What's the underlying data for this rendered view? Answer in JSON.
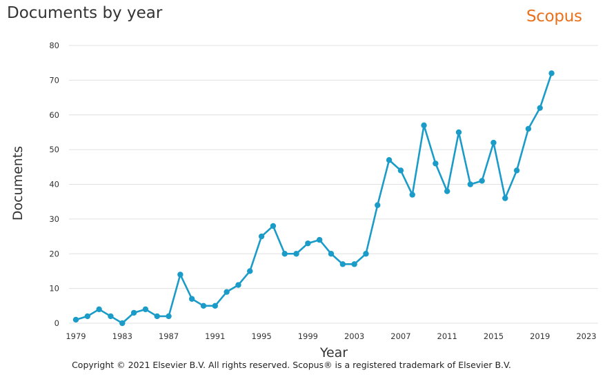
{
  "header": {
    "title": "Documents by year",
    "brand": "Scopus"
  },
  "footer": {
    "copyright": "Copyright © 2021 Elsevier B.V. All rights reserved. Scopus® is a registered trademark of Elsevier B.V."
  },
  "colors": {
    "series": "#1a9bc8",
    "brand": "#e9711c",
    "grid": "#e0e0e0"
  },
  "chart_data": {
    "type": "line",
    "title": "Documents by year",
    "xlabel": "Year",
    "ylabel": "Documents",
    "xlim": [
      1979,
      2023
    ],
    "ylim": [
      0,
      80
    ],
    "x_ticks": [
      "1979",
      "1983",
      "1987",
      "1991",
      "1995",
      "1999",
      "2003",
      "2007",
      "2011",
      "2015",
      "2019",
      "2023"
    ],
    "y_ticks": [
      "0",
      "10",
      "20",
      "30",
      "40",
      "50",
      "60",
      "70",
      "80"
    ],
    "grid": "horizontal",
    "legend": "none",
    "series": [
      {
        "x": [
          1979,
          1980,
          1981,
          1982,
          1983,
          1984,
          1985,
          1986,
          1987,
          1988,
          1989,
          1990,
          1991,
          1992,
          1993,
          1994,
          1995,
          1996,
          1997,
          1998,
          1999,
          2000,
          2001,
          2002,
          2003,
          2004,
          2005,
          2006,
          2007,
          2008,
          2009,
          2010,
          2011,
          2012,
          2013,
          2014,
          2015,
          2016,
          2017,
          2018,
          2019,
          2020
        ],
        "values": [
          1,
          2,
          4,
          2,
          0,
          3,
          4,
          2,
          2,
          14,
          7,
          5,
          5,
          9,
          11,
          15,
          25,
          28,
          20,
          20,
          23,
          24,
          20,
          17,
          17,
          20,
          34,
          47,
          44,
          37,
          57,
          46,
          38,
          55,
          40,
          41,
          52,
          36,
          44,
          56,
          62,
          72
        ]
      }
    ]
  }
}
